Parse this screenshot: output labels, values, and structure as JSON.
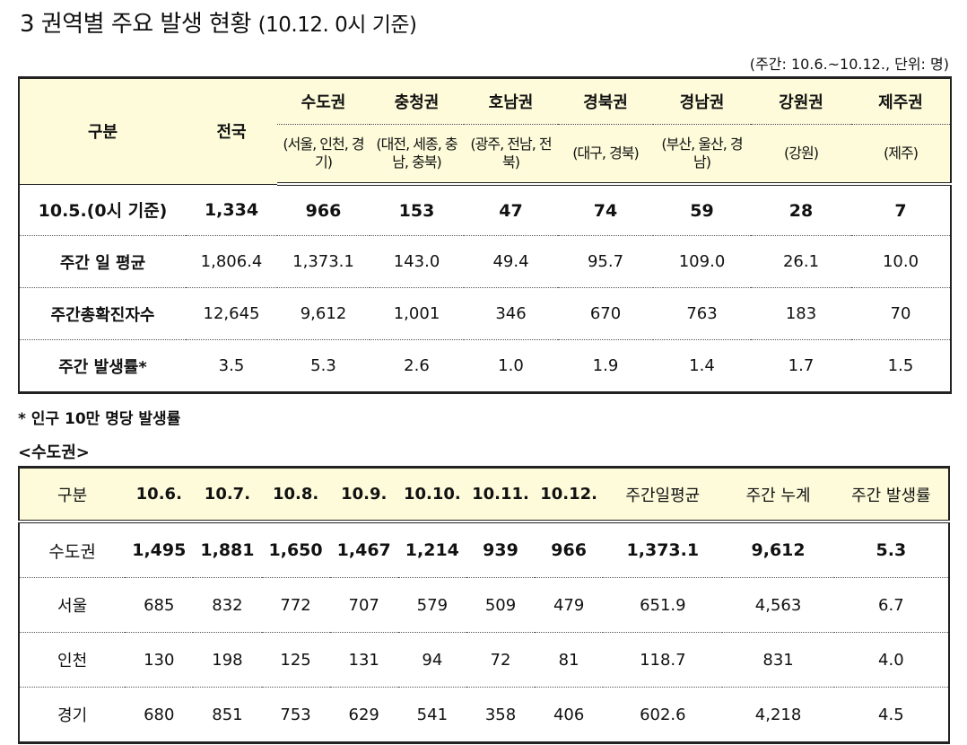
{
  "header": {
    "title": "3  권역별 주요 발생 현황",
    "title_date": "(10.12. 0시 기준)",
    "unit_note": "(주간: 10.6.~10.12., 단위: 명)"
  },
  "regional_table": {
    "label_header": "구분",
    "total_header": "전국",
    "regions": [
      {
        "name": "수도권",
        "sub": "(서울, 인천, 경기)"
      },
      {
        "name": "충청권",
        "sub": "(대전, 세종, 충남, 충북)"
      },
      {
        "name": "호남권",
        "sub": "(광주, 전남, 전북)"
      },
      {
        "name": "경북권",
        "sub": "(대구, 경북)"
      },
      {
        "name": "경남권",
        "sub": "(부산, 울산, 경남)"
      },
      {
        "name": "강원권",
        "sub": "(강원)"
      },
      {
        "name": "제주권",
        "sub": "(제주)"
      }
    ],
    "rows": [
      {
        "label": "10.5.(0시 기준)",
        "values": [
          "1,334",
          "966",
          "153",
          "47",
          "74",
          "59",
          "28",
          "7"
        ]
      },
      {
        "label": "주간 일 평균",
        "values": [
          "1,806.4",
          "1,373.1",
          "143.0",
          "49.4",
          "95.7",
          "109.0",
          "26.1",
          "10.0"
        ]
      },
      {
        "label": "주간총확진자수",
        "values": [
          "12,645",
          "9,612",
          "1,001",
          "346",
          "670",
          "763",
          "183",
          "70"
        ]
      },
      {
        "label": "주간 발생률*",
        "values": [
          "3.5",
          "5.3",
          "2.6",
          "1.0",
          "1.9",
          "1.4",
          "1.7",
          "1.5"
        ]
      }
    ]
  },
  "footnote": "* 인구 10만 명당 발생률",
  "capital_section": {
    "title": "<수도권>",
    "headers": [
      "구분",
      "10.6.",
      "10.7.",
      "10.8.",
      "10.9.",
      "10.10.",
      "10.11.",
      "10.12.",
      "주간일평균",
      "주간 누계",
      "주간 발생률"
    ],
    "rows": [
      {
        "label": "수도권",
        "values": [
          "1,495",
          "1,881",
          "1,650",
          "1,467",
          "1,214",
          "939",
          "966",
          "1,373.1",
          "9,612",
          "5.3"
        ]
      },
      {
        "label": "서울",
        "values": [
          "685",
          "832",
          "772",
          "707",
          "579",
          "509",
          "479",
          "651.9",
          "4,563",
          "6.7"
        ]
      },
      {
        "label": "인천",
        "values": [
          "130",
          "198",
          "125",
          "131",
          "94",
          "72",
          "81",
          "118.7",
          "831",
          "4.0"
        ]
      },
      {
        "label": "경기",
        "values": [
          "680",
          "851",
          "753",
          "629",
          "541",
          "358",
          "406",
          "602.6",
          "4,218",
          "4.5"
        ]
      }
    ]
  }
}
